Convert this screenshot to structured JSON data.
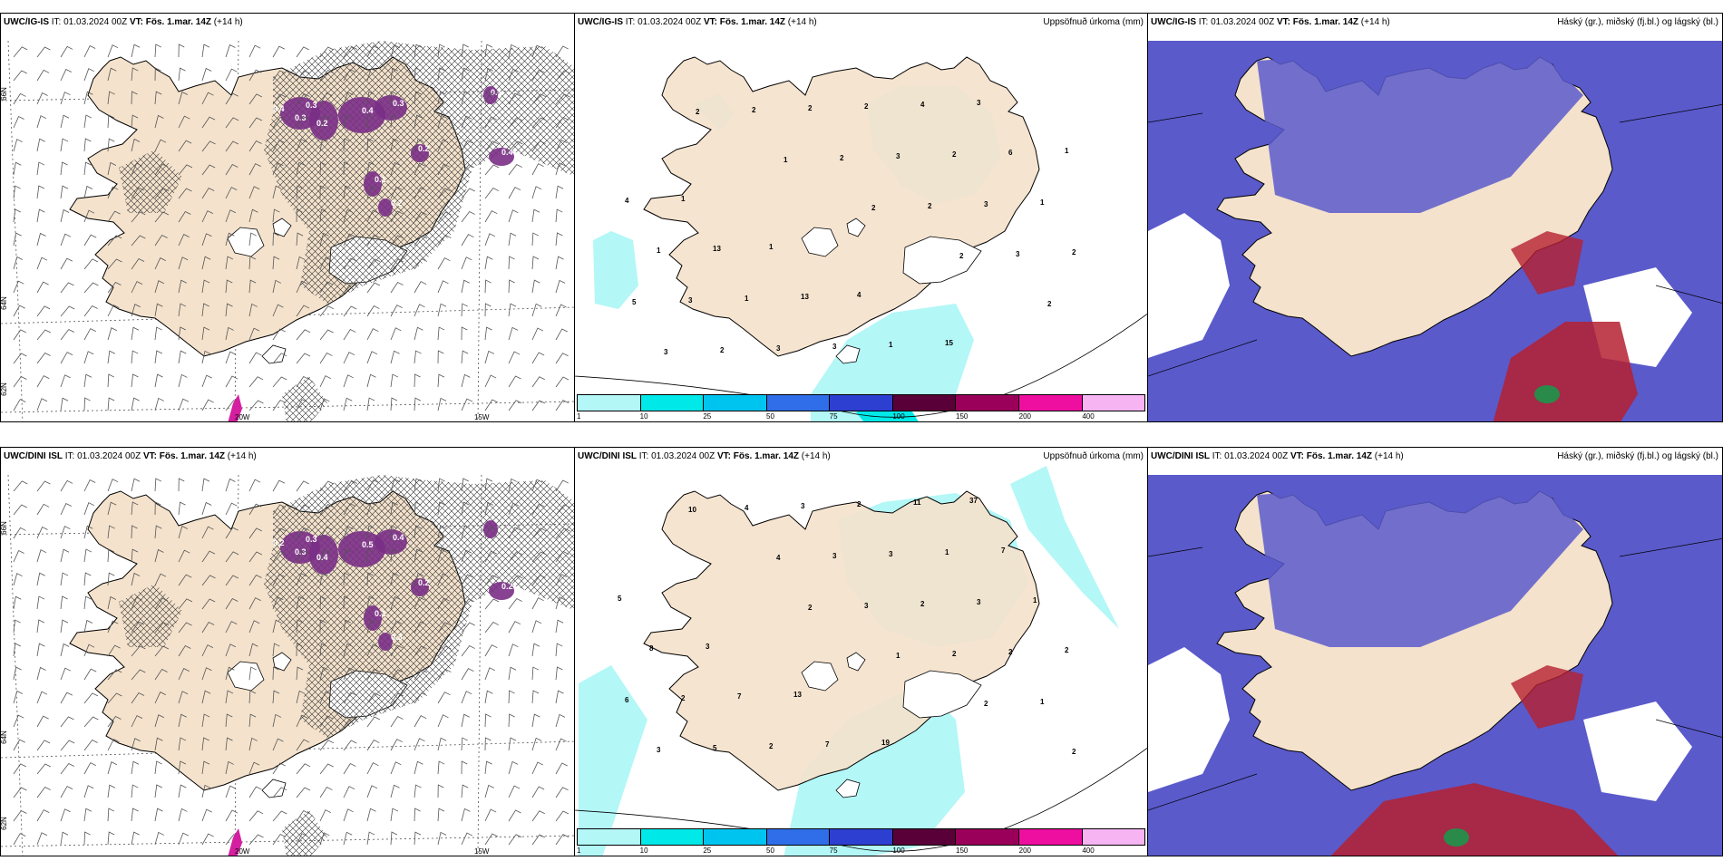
{
  "rows": [
    {
      "model": "UWC/IG-IS",
      "it_label": "IT:",
      "it_value": "01.03.2024 00Z",
      "vt_label": "VT:",
      "vt_value": "Fös. 1.mar. 14Z",
      "lead": "(+14 h)"
    },
    {
      "model": "UWC/DINI ISL",
      "it_label": "IT:",
      "it_value": "01.03.2024 00Z",
      "vt_label": "VT:",
      "vt_value": "Fös. 1.mar. 14Z",
      "lead": "(+14 h)"
    }
  ],
  "precip_title": "Uppsöfnuð úrkoma (mm)",
  "cloud_title": "Háský (gr.), miðský (fj.bl.) og lágský (bl.)",
  "axis_labels": {
    "lon_20w": "20W",
    "lon_15w": "15W",
    "lat_66n": "66N",
    "lat_64n": "64N",
    "lat_62n": "62N"
  },
  "colorbar": {
    "ticks": [
      "1",
      "10",
      "25",
      "50",
      "75",
      "100",
      "150",
      "200",
      "400"
    ],
    "colors": [
      "#b3f7f7",
      "#00e8e8",
      "#00c4f0",
      "#2f6ee8",
      "#2d3fd0",
      "#5a0038",
      "#9a005a",
      "#ee0ea0",
      "#f6b4f2"
    ]
  },
  "colors": {
    "land": "#f4e2cc",
    "land_grey": "#e8d8c4",
    "ocean_high_cloud": "#5a5acb",
    "precip_light": "#b3f7f7",
    "precip_purple": "#7a2f86",
    "cloud_red": "#b52030"
  },
  "precip_labels_top": [
    "2",
    "1",
    "2",
    "2",
    "2",
    "3",
    "2",
    "2",
    "2",
    "3",
    "5",
    "2",
    "2",
    "3",
    "3",
    "2",
    "3",
    "3",
    "2",
    "2",
    "1",
    "1",
    "1",
    "3",
    "4",
    "6",
    "4",
    "13",
    "13",
    "1",
    "3",
    "1",
    "1",
    "1",
    "4",
    "15"
  ],
  "precip_labels_bottom": [
    "2",
    "1",
    "2",
    "2",
    "10",
    "4",
    "3",
    "2",
    "1",
    "3",
    "4",
    "3",
    "2",
    "2",
    "6",
    "5",
    "3",
    "3",
    "3",
    "2",
    "2",
    "2",
    "2",
    "1",
    "1",
    "8",
    "7",
    "7",
    "11",
    "7",
    "5",
    "3",
    "13",
    "19",
    "37"
  ],
  "frost_labels_top": [
    "0.4",
    "0.3",
    "0.2",
    "0.3",
    "0.4",
    "0.3",
    "0.2",
    "0.1",
    "0.2",
    "0.4",
    "0.1"
  ],
  "frost_labels_bottom": [
    "0.2",
    "0.3",
    "0.4",
    "0.3",
    "0.5",
    "0.4",
    "0.2",
    "0.1",
    "0.3",
    "0.2"
  ]
}
